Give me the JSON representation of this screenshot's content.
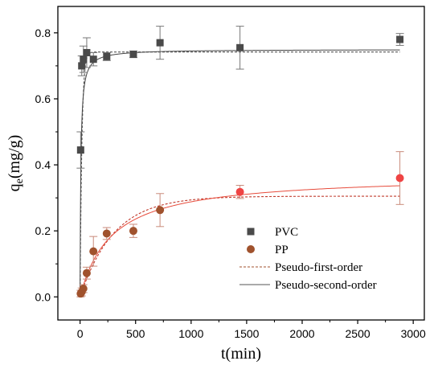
{
  "chart_data": {
    "type": "scatter",
    "xlabel": "t(min)",
    "ylabel": "q",
    "ylabel_sub": "e",
    "ylabel_unit": "(mg/g)",
    "xlim": [
      -200,
      3100
    ],
    "ylim": [
      -0.07,
      0.88
    ],
    "xticks": [
      0,
      500,
      1000,
      1500,
      2000,
      2500,
      3000
    ],
    "yticks": [
      0.0,
      0.2,
      0.4,
      0.6,
      0.8
    ],
    "ytick_labels": [
      "0.0",
      "0.2",
      "0.4",
      "0.6",
      "0.8"
    ],
    "grid": false,
    "legend_position": "bottom-right",
    "series": [
      {
        "name": "PVC",
        "marker": "square",
        "color": "#4a4a4a",
        "x": [
          5,
          15,
          30,
          60,
          120,
          240,
          480,
          720,
          1440,
          2880
        ],
        "y": [
          0.445,
          0.7,
          0.72,
          0.74,
          0.72,
          0.728,
          0.735,
          0.77,
          0.755,
          0.78
        ],
        "err": [
          0.055,
          0.03,
          0.04,
          0.045,
          0.02,
          0.012,
          0.01,
          0.05,
          0.065,
          0.018
        ]
      },
      {
        "name": "PP",
        "marker": "circle",
        "color": "#a0522d",
        "x": [
          5,
          15,
          30,
          60,
          120,
          240,
          480,
          720,
          1440,
          2880
        ],
        "y": [
          0.01,
          0.015,
          0.025,
          0.072,
          0.138,
          0.192,
          0.2,
          0.263,
          0.318,
          0.36
        ],
        "err": [
          0.01,
          0.012,
          0.012,
          0.018,
          0.045,
          0.018,
          0.02,
          0.05,
          0.02,
          0.08
        ]
      }
    ],
    "fits": [
      {
        "name": "Pseudo-first-order",
        "series": "PVC",
        "style": "dashed",
        "color": "#555555",
        "qe": 0.742,
        "k": 0.06
      },
      {
        "name": "Pseudo-second-order",
        "series": "PVC",
        "style": "solid",
        "color": "#444444",
        "qe": 0.75,
        "k2": 0.2
      },
      {
        "name": "Pseudo-first-order",
        "series": "PP",
        "style": "dashed",
        "color": "#c0392b",
        "qe": 0.305,
        "k": 0.0033
      },
      {
        "name": "Pseudo-second-order",
        "series": "PP",
        "style": "solid",
        "color": "#e74c3c",
        "qe": 0.37,
        "k2": 0.0095
      }
    ],
    "legend": [
      {
        "label": "PVC",
        "kind": "square",
        "color": "#4a4a4a"
      },
      {
        "label": "PP",
        "kind": "circle",
        "color": "#a0522d"
      },
      {
        "label": "Pseudo-first-order",
        "kind": "dashed",
        "color": "#a0522d"
      },
      {
        "label": "Pseudo-second-order",
        "kind": "solid",
        "color": "#555555"
      }
    ]
  }
}
